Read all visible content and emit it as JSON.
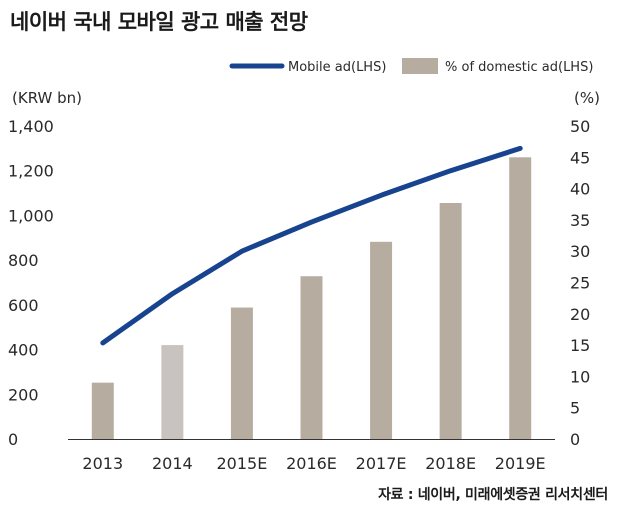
{
  "title": "네이버 국내 모바일 광고 매출 전망",
  "source": "자료 : 네이버, 미래에셋증권 리서치센터",
  "chart_data": {
    "type": "bar",
    "categories": [
      "2013",
      "2014",
      "2015E",
      "2016E",
      "2017E",
      "2018E",
      "2019E"
    ],
    "series": [
      {
        "name": "Mobile ad(LHS)",
        "kind": "line",
        "axis": "left",
        "color": "#17438f",
        "values": [
          430,
          650,
          840,
          970,
          1090,
          1200,
          1300
        ]
      },
      {
        "name": "% of domestic ad(LHS)",
        "kind": "bar",
        "axis": "right",
        "color": "#b7aca0",
        "values": [
          9,
          15,
          21,
          26,
          31.5,
          37.7,
          45
        ]
      }
    ],
    "highlight_bar_color": "#c9c3bf",
    "highlight_index": 1,
    "left_axis": {
      "unit": "(KRW bn)",
      "min": 0,
      "max": 1400,
      "ticks": [
        "0",
        "200",
        "400",
        "600",
        "800",
        "1,000",
        "1,200",
        "1,400"
      ]
    },
    "right_axis": {
      "unit": "(%)",
      "min": 0,
      "max": 50,
      "ticks": [
        "0",
        "5",
        "10",
        "15",
        "20",
        "25",
        "30",
        "35",
        "40",
        "45",
        "50"
      ]
    },
    "legend_position": "top-right",
    "grid": false
  }
}
